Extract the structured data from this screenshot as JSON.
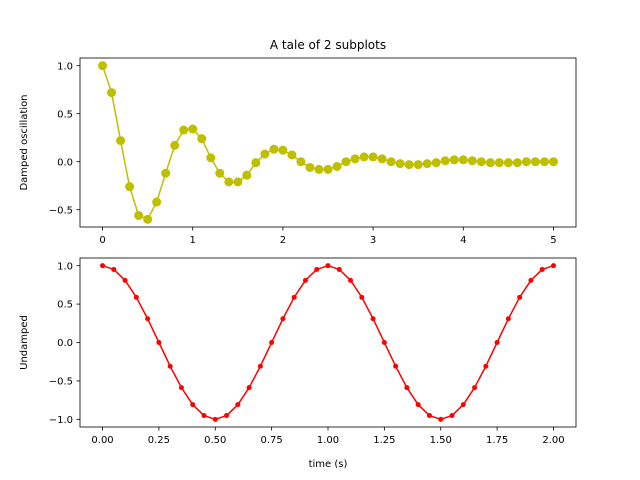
{
  "figure": {
    "title": "A tale of 2 subplots"
  },
  "chart_data": [
    {
      "type": "line",
      "title": "A tale of 2 subplots",
      "xlabel": "",
      "ylabel": "Damped oscillation",
      "xlim": [
        -0.25,
        5.25
      ],
      "ylim": [
        -0.68,
        1.08
      ],
      "x_ticks": [
        "0",
        "1",
        "2",
        "3",
        "4",
        "5"
      ],
      "y_ticks": [
        "−0.5",
        "0.0",
        "0.5",
        "1.0"
      ],
      "grid": false,
      "series": [
        {
          "color": "#bfbf00",
          "marker": "circle",
          "x": [
            0.0,
            0.1,
            0.2,
            0.3,
            0.4,
            0.5,
            0.6,
            0.7,
            0.8,
            0.9,
            1.0,
            1.1,
            1.2,
            1.3,
            1.4,
            1.5,
            1.6,
            1.7,
            1.8,
            1.9,
            2.0,
            2.1,
            2.2,
            2.3,
            2.4,
            2.5,
            2.6,
            2.7,
            2.8,
            2.9,
            3.0,
            3.1,
            3.2,
            3.3,
            3.4,
            3.5,
            3.6,
            3.7,
            3.8,
            3.9,
            4.0,
            4.1,
            4.2,
            4.3,
            4.4,
            4.5,
            4.6,
            4.7,
            4.8,
            4.9,
            5.0
          ],
          "y": [
            1.0,
            0.72,
            0.22,
            -0.26,
            -0.56,
            -0.6,
            -0.42,
            -0.12,
            0.17,
            0.33,
            0.34,
            0.24,
            0.04,
            -0.12,
            -0.21,
            -0.21,
            -0.14,
            -0.01,
            0.08,
            0.13,
            0.12,
            0.07,
            0.0,
            -0.06,
            -0.08,
            -0.08,
            -0.05,
            0.0,
            0.03,
            0.05,
            0.05,
            0.03,
            0.0,
            -0.02,
            -0.03,
            -0.03,
            -0.02,
            -0.01,
            0.01,
            0.02,
            0.02,
            0.01,
            0.0,
            -0.01,
            -0.01,
            -0.01,
            -0.01,
            0.0,
            0.0,
            0.0,
            0.0
          ]
        }
      ]
    },
    {
      "type": "line",
      "title": "",
      "xlabel": "time (s)",
      "ylabel": "Undamped",
      "xlim": [
        -0.1,
        2.1
      ],
      "ylim": [
        -1.1,
        1.1
      ],
      "x_ticks": [
        "0.00",
        "0.25",
        "0.50",
        "0.75",
        "1.00",
        "1.25",
        "1.50",
        "1.75",
        "2.00"
      ],
      "y_ticks": [
        "−1.0",
        "−0.5",
        "0.0",
        "0.5",
        "1.0"
      ],
      "grid": false,
      "series": [
        {
          "color": "#ff0000",
          "marker": "point",
          "function": "cos(2*pi*t)",
          "x": [
            0.0,
            0.05,
            0.1,
            0.15,
            0.2,
            0.25,
            0.3,
            0.35,
            0.4,
            0.45,
            0.5,
            0.55,
            0.6,
            0.65,
            0.7,
            0.75,
            0.8,
            0.85,
            0.9,
            0.95,
            1.0,
            1.05,
            1.1,
            1.15,
            1.2,
            1.25,
            1.3,
            1.35,
            1.4,
            1.45,
            1.5,
            1.55,
            1.6,
            1.65,
            1.7,
            1.75,
            1.8,
            1.85,
            1.9,
            1.95,
            2.0
          ],
          "y": [
            1.0,
            0.951,
            0.809,
            0.588,
            0.309,
            0.0,
            -0.309,
            -0.588,
            -0.809,
            -0.951,
            -1.0,
            -0.951,
            -0.809,
            -0.588,
            -0.309,
            0.0,
            0.309,
            0.588,
            0.809,
            0.951,
            1.0,
            0.951,
            0.809,
            0.588,
            0.309,
            0.0,
            -0.309,
            -0.588,
            -0.809,
            -0.951,
            -1.0,
            -0.951,
            -0.809,
            -0.588,
            -0.309,
            0.0,
            0.309,
            0.588,
            0.809,
            0.951,
            1.0
          ]
        }
      ]
    }
  ]
}
